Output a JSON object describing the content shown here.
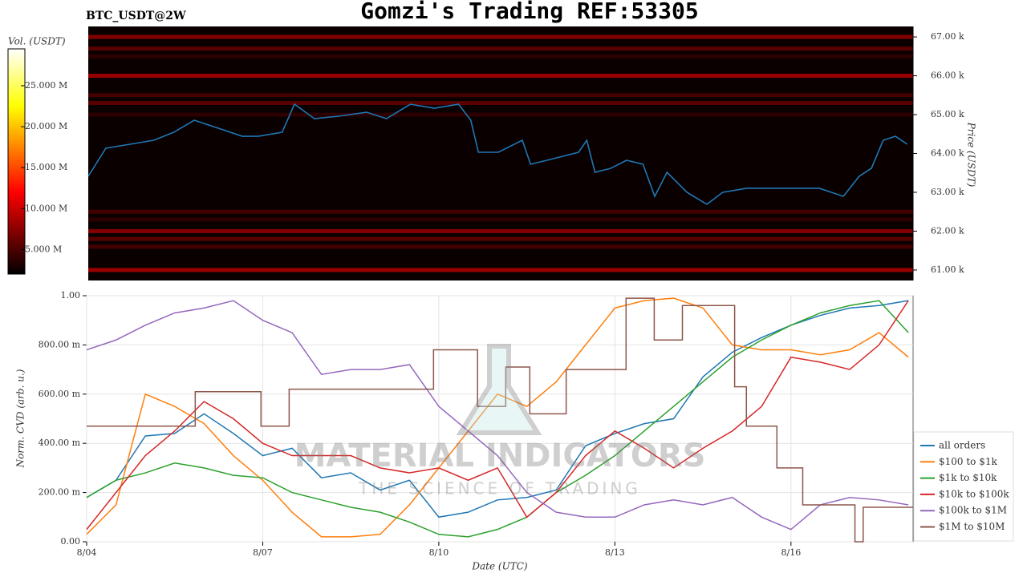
{
  "chart_data": [
    {
      "type": "heatmap",
      "title": "Gomzi's Trading REF:53305",
      "subtitle": "BTC_USDT@2W",
      "ylabel": "Price (USDT)",
      "colorbar_label": "Vol. (USDT)",
      "colormap": "hot",
      "ylim": [
        60730,
        67270
      ],
      "yticks": [
        {
          "value": 61000,
          "label": "61.00 k"
        },
        {
          "value": 62000,
          "label": "62.00 k"
        },
        {
          "value": 63000,
          "label": "63.00 k"
        },
        {
          "value": 64000,
          "label": "64.00 k"
        },
        {
          "value": 65000,
          "label": "65.00 k"
        },
        {
          "value": 66000,
          "label": "66.00 k"
        },
        {
          "value": 67000,
          "label": "67.00 k"
        }
      ],
      "clim": [
        2000000,
        29500000
      ],
      "cticks": [
        {
          "value": 5000000,
          "label": "5.000 M"
        },
        {
          "value": 10000000,
          "label": "10.000 M"
        },
        {
          "value": 15000000,
          "label": "15.000 M"
        },
        {
          "value": 20000000,
          "label": "20.000 M"
        },
        {
          "value": 25000000,
          "label": "25.000 M"
        }
      ],
      "xlim": [
        0,
        14.08
      ],
      "levels": {
        "prices": [
          67000,
          66700,
          66500,
          66000,
          65500,
          65300,
          65000,
          62500,
          62300,
          62000,
          61800,
          61600,
          61000
        ],
        "volumes": [
          8000000,
          6000000,
          4000000,
          9000000,
          5000000,
          6000000,
          4000000,
          5000000,
          4000000,
          8000000,
          6000000,
          5000000,
          9000000
        ]
      },
      "color": "#1f77b4",
      "x": [
        0,
        0.3,
        0.71,
        1.12,
        1.46,
        1.81,
        2.22,
        2.63,
        2.9,
        3.31,
        3.52,
        3.86,
        4.27,
        4.75,
        5.09,
        5.5,
        5.91,
        6.32,
        6.53,
        6.66,
        7.0,
        7.41,
        7.55,
        7.83,
        8.1,
        8.37,
        8.51,
        8.65,
        8.92,
        9.19,
        9.47,
        9.67,
        9.88,
        10.22,
        10.56,
        10.83,
        11.24,
        11.66,
        12.07,
        12.48,
        12.89,
        13.16,
        13.37,
        13.57,
        13.78,
        13.98
      ],
      "values": [
        63412,
        64134,
        64237,
        64340,
        64546,
        64856,
        64649,
        64443,
        64443,
        64546,
        65268,
        64897,
        64959,
        65062,
        64897,
        65268,
        65165,
        65268,
        64856,
        64031,
        64031,
        64340,
        63722,
        63825,
        63928,
        64031,
        64340,
        63515,
        63619,
        63825,
        63722,
        62897,
        63515,
        63000,
        62691,
        63000,
        63103,
        63103,
        63103,
        63103,
        62897,
        63412,
        63619,
        64340,
        64443,
        64237
      ]
    },
    {
      "type": "line",
      "xlabel": "Date (UTC)",
      "ylabel": "Norm. CVD (arb. u.)",
      "watermark": {
        "title": "MATERIAL INDICATORS",
        "subtitle": "THE SCIENCE OF TRADING"
      },
      "grid": true,
      "legend": "outside lower right",
      "xlim": [
        0,
        14.08
      ],
      "xticks": [
        {
          "value": 0,
          "label": "8/04"
        },
        {
          "value": 3,
          "label": "8/07"
        },
        {
          "value": 6,
          "label": "8/10"
        },
        {
          "value": 9,
          "label": "8/13"
        },
        {
          "value": 12,
          "label": "8/16"
        }
      ],
      "ylim": [
        0,
        1
      ],
      "yticks": [
        {
          "value": 0,
          "label": "0.00"
        },
        {
          "value": 0.2,
          "label": "200.00 m"
        },
        {
          "value": 0.4,
          "label": "400.00 m"
        },
        {
          "value": 0.6,
          "label": "600.00 m"
        },
        {
          "value": 0.8,
          "label": "800.00 m"
        },
        {
          "value": 1,
          "label": "1.00"
        }
      ],
      "series": [
        {
          "name": "all orders",
          "color": "#1f77b4",
          "x": [
            0,
            0.5,
            1,
            1.5,
            2,
            2.5,
            3,
            3.5,
            4,
            4.5,
            5,
            5.5,
            6,
            6.5,
            7,
            7.5,
            8,
            8.5,
            9,
            9.5,
            10,
            10.5,
            11,
            11.5,
            12,
            12.5,
            13,
            13.5,
            14
          ],
          "values": [
            0.18,
            0.25,
            0.43,
            0.44,
            0.52,
            0.44,
            0.35,
            0.38,
            0.26,
            0.28,
            0.21,
            0.25,
            0.1,
            0.12,
            0.17,
            0.18,
            0.21,
            0.39,
            0.44,
            0.48,
            0.5,
            0.67,
            0.77,
            0.83,
            0.88,
            0.92,
            0.95,
            0.96,
            0.98
          ]
        },
        {
          "name": "$100 to $1k",
          "color": "#ff7f0e",
          "x": [
            0,
            0.5,
            1,
            1.5,
            2,
            2.5,
            3,
            3.5,
            4,
            4.5,
            5,
            5.5,
            6,
            6.5,
            7,
            7.5,
            8,
            8.5,
            9,
            9.5,
            10,
            10.5,
            11,
            11.5,
            12,
            12.5,
            13,
            13.5,
            14
          ],
          "values": [
            0.03,
            0.15,
            0.6,
            0.55,
            0.48,
            0.35,
            0.25,
            0.12,
            0.02,
            0.02,
            0.03,
            0.15,
            0.3,
            0.45,
            0.6,
            0.55,
            0.65,
            0.8,
            0.95,
            0.98,
            0.99,
            0.95,
            0.8,
            0.78,
            0.78,
            0.76,
            0.78,
            0.85,
            0.75
          ]
        },
        {
          "name": "$1k to $10k",
          "color": "#2ca02c",
          "x": [
            0,
            0.5,
            1,
            1.5,
            2,
            2.5,
            3,
            3.5,
            4,
            4.5,
            5,
            5.5,
            6,
            6.5,
            7,
            7.5,
            8,
            8.5,
            9,
            9.5,
            10,
            10.5,
            11,
            11.5,
            12,
            12.5,
            13,
            13.5,
            14
          ],
          "values": [
            0.18,
            0.25,
            0.28,
            0.32,
            0.3,
            0.27,
            0.26,
            0.2,
            0.17,
            0.14,
            0.12,
            0.08,
            0.03,
            0.02,
            0.05,
            0.1,
            0.2,
            0.27,
            0.35,
            0.45,
            0.55,
            0.65,
            0.75,
            0.82,
            0.88,
            0.93,
            0.96,
            0.98,
            0.85
          ]
        },
        {
          "name": "$10k to $100k",
          "color": "#d62728",
          "x": [
            0,
            0.5,
            1,
            1.5,
            2,
            2.5,
            3,
            3.5,
            4,
            4.5,
            5,
            5.5,
            6,
            6.5,
            7,
            7.5,
            8,
            8.5,
            9,
            9.5,
            10,
            10.5,
            11,
            11.5,
            12,
            12.5,
            13,
            13.5,
            14
          ],
          "values": [
            0.05,
            0.2,
            0.35,
            0.45,
            0.57,
            0.5,
            0.4,
            0.35,
            0.35,
            0.35,
            0.3,
            0.28,
            0.3,
            0.25,
            0.3,
            0.1,
            0.2,
            0.35,
            0.45,
            0.38,
            0.3,
            0.38,
            0.45,
            0.55,
            0.75,
            0.73,
            0.7,
            0.8,
            0.98
          ]
        },
        {
          "name": "$100k to $1M",
          "color": "#9467bd",
          "x": [
            0,
            0.5,
            1,
            1.5,
            2,
            2.5,
            3,
            3.5,
            4,
            4.5,
            5,
            5.5,
            6,
            6.5,
            7,
            7.5,
            8,
            8.5,
            9,
            9.5,
            10,
            10.5,
            11,
            11.5,
            12,
            12.5,
            13,
            13.5,
            14
          ],
          "values": [
            0.78,
            0.82,
            0.88,
            0.93,
            0.95,
            0.98,
            0.9,
            0.85,
            0.68,
            0.7,
            0.7,
            0.72,
            0.55,
            0.45,
            0.35,
            0.2,
            0.12,
            0.1,
            0.1,
            0.15,
            0.17,
            0.15,
            0.18,
            0.1,
            0.05,
            0.15,
            0.18,
            0.17,
            0.15
          ]
        },
        {
          "name": "$1M to $10M",
          "color": "#8c564b",
          "drawstyle": "steps-post",
          "x": [
            0,
            1.85,
            2.97,
            3.45,
            5.91,
            6.66,
            7.14,
            7.55,
            8.17,
            9.19,
            9.67,
            10.15,
            11.04,
            11.24,
            11.76,
            12.2,
            13.09,
            13.23
          ],
          "values": [
            0.47,
            0.61,
            0.47,
            0.62,
            0.78,
            0.55,
            0.71,
            0.52,
            0.7,
            0.99,
            0.82,
            0.96,
            0.63,
            0.47,
            0.3,
            0.15,
            0,
            0.14
          ]
        }
      ]
    }
  ]
}
